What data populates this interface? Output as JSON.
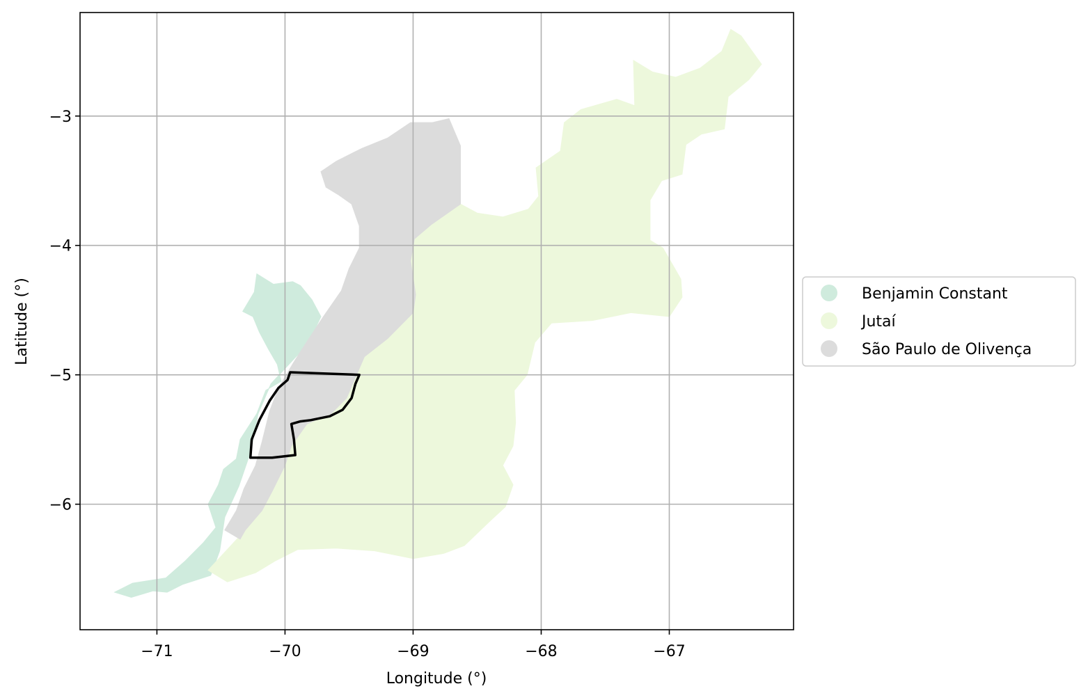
{
  "chart_data": {
    "type": "map",
    "xlabel": "Longitude (°)",
    "ylabel": "Latitude (°)",
    "xlim": [
      -71.6,
      -66.03
    ],
    "ylim": [
      -6.97,
      -2.2
    ],
    "x_ticks": [
      -71,
      -70,
      -69,
      -68,
      -67
    ],
    "x_tick_labels": [
      "−71",
      "−70",
      "−69",
      "−68",
      "−67"
    ],
    "y_ticks": [
      -3,
      -4,
      -5,
      -6
    ],
    "y_tick_labels": [
      "−3",
      "−4",
      "−5",
      "−6"
    ],
    "grid": true,
    "legend_position": "center-right-outside",
    "series": [
      {
        "name": "Benjamin Constant",
        "color": "#cfebdd",
        "polygon": [
          [
            -71.33,
            -6.68
          ],
          [
            -71.19,
            -6.61
          ],
          [
            -70.93,
            -6.57
          ],
          [
            -70.78,
            -6.44
          ],
          [
            -70.64,
            -6.3
          ],
          [
            -70.54,
            -6.18
          ],
          [
            -70.6,
            -6.0
          ],
          [
            -70.52,
            -5.85
          ],
          [
            -70.48,
            -5.73
          ],
          [
            -70.38,
            -5.65
          ],
          [
            -70.35,
            -5.5
          ],
          [
            -70.22,
            -5.3
          ],
          [
            -70.15,
            -5.12
          ],
          [
            -70.03,
            -5.05
          ],
          [
            -70.06,
            -4.92
          ],
          [
            -70.13,
            -4.8
          ],
          [
            -70.2,
            -4.67
          ],
          [
            -70.25,
            -4.55
          ],
          [
            -70.33,
            -4.51
          ],
          [
            -70.24,
            -4.36
          ],
          [
            -70.22,
            -4.22
          ],
          [
            -70.09,
            -4.3
          ],
          [
            -69.94,
            -4.28
          ],
          [
            -69.88,
            -4.31
          ],
          [
            -69.79,
            -4.42
          ],
          [
            -69.72,
            -4.55
          ],
          [
            -69.82,
            -4.76
          ],
          [
            -69.98,
            -4.93
          ],
          [
            -70.11,
            -5.07
          ],
          [
            -70.21,
            -5.3
          ],
          [
            -70.27,
            -5.6
          ],
          [
            -70.36,
            -5.86
          ],
          [
            -70.47,
            -6.1
          ],
          [
            -70.51,
            -6.36
          ],
          [
            -70.58,
            -6.55
          ],
          [
            -70.8,
            -6.62
          ],
          [
            -70.92,
            -6.68
          ],
          [
            -71.03,
            -6.67
          ],
          [
            -71.2,
            -6.72
          ],
          [
            -71.33,
            -6.68
          ]
        ]
      },
      {
        "name": "Jutaí",
        "color": "#edf8dc",
        "polygon": [
          [
            -70.6,
            -6.51
          ],
          [
            -70.45,
            -6.35
          ],
          [
            -70.31,
            -6.2
          ],
          [
            -70.18,
            -6.05
          ],
          [
            -70.1,
            -5.9
          ],
          [
            -70.0,
            -5.7
          ],
          [
            -69.95,
            -5.55
          ],
          [
            -69.83,
            -5.38
          ],
          [
            -69.64,
            -5.3
          ],
          [
            -69.52,
            -5.18
          ],
          [
            -69.45,
            -5.02
          ],
          [
            -69.38,
            -4.86
          ],
          [
            -69.2,
            -4.72
          ],
          [
            -69.0,
            -4.52
          ],
          [
            -68.98,
            -4.38
          ],
          [
            -69.02,
            -4.12
          ],
          [
            -68.99,
            -3.95
          ],
          [
            -68.88,
            -3.84
          ],
          [
            -68.65,
            -3.67
          ],
          [
            -68.5,
            -3.75
          ],
          [
            -68.3,
            -3.78
          ],
          [
            -68.1,
            -3.72
          ],
          [
            -68.02,
            -3.62
          ],
          [
            -68.04,
            -3.4
          ],
          [
            -67.85,
            -3.27
          ],
          [
            -67.82,
            -3.05
          ],
          [
            -67.69,
            -2.95
          ],
          [
            -67.41,
            -2.87
          ],
          [
            -67.27,
            -2.92
          ],
          [
            -67.28,
            -2.57
          ],
          [
            -67.13,
            -2.66
          ],
          [
            -66.95,
            -2.7
          ],
          [
            -66.76,
            -2.63
          ],
          [
            -66.59,
            -2.5
          ],
          [
            -66.52,
            -2.33
          ],
          [
            -66.44,
            -2.38
          ],
          [
            -66.28,
            -2.6
          ],
          [
            -66.38,
            -2.72
          ],
          [
            -66.54,
            -2.85
          ],
          [
            -66.57,
            -3.1
          ],
          [
            -66.75,
            -3.14
          ],
          [
            -66.87,
            -3.22
          ],
          [
            -66.9,
            -3.45
          ],
          [
            -67.06,
            -3.5
          ],
          [
            -67.15,
            -3.65
          ],
          [
            -67.15,
            -3.96
          ],
          [
            -67.05,
            -4.02
          ],
          [
            -66.91,
            -4.26
          ],
          [
            -66.9,
            -4.4
          ],
          [
            -67.0,
            -4.55
          ],
          [
            -67.3,
            -4.52
          ],
          [
            -67.6,
            -4.58
          ],
          [
            -67.92,
            -4.6
          ],
          [
            -68.05,
            -4.75
          ],
          [
            -68.11,
            -5.0
          ],
          [
            -68.21,
            -5.12
          ],
          [
            -68.2,
            -5.37
          ],
          [
            -68.22,
            -5.55
          ],
          [
            -68.3,
            -5.7
          ],
          [
            -68.22,
            -5.85
          ],
          [
            -68.28,
            -6.02
          ],
          [
            -68.4,
            -6.13
          ],
          [
            -68.6,
            -6.32
          ],
          [
            -68.76,
            -6.38
          ],
          [
            -69.0,
            -6.42
          ],
          [
            -69.3,
            -6.36
          ],
          [
            -69.6,
            -6.34
          ],
          [
            -69.9,
            -6.35
          ],
          [
            -70.08,
            -6.44
          ],
          [
            -70.23,
            -6.53
          ],
          [
            -70.45,
            -6.6
          ],
          [
            -70.6,
            -6.51
          ]
        ]
      },
      {
        "name": "São Paulo de Olivença",
        "color": "#dcdcdc",
        "polygon": [
          [
            -70.47,
            -6.2
          ],
          [
            -70.38,
            -6.05
          ],
          [
            -70.32,
            -5.88
          ],
          [
            -70.23,
            -5.7
          ],
          [
            -70.18,
            -5.52
          ],
          [
            -70.12,
            -5.28
          ],
          [
            -70.05,
            -5.1
          ],
          [
            -69.93,
            -4.9
          ],
          [
            -69.82,
            -4.73
          ],
          [
            -69.7,
            -4.55
          ],
          [
            -69.56,
            -4.35
          ],
          [
            -69.5,
            -4.18
          ],
          [
            -69.42,
            -4.02
          ],
          [
            -69.42,
            -3.85
          ],
          [
            -69.48,
            -3.68
          ],
          [
            -69.58,
            -3.61
          ],
          [
            -69.68,
            -3.55
          ],
          [
            -69.72,
            -3.43
          ],
          [
            -69.6,
            -3.35
          ],
          [
            -69.4,
            -3.25
          ],
          [
            -69.2,
            -3.17
          ],
          [
            -69.02,
            -3.05
          ],
          [
            -68.85,
            -3.05
          ],
          [
            -68.72,
            -3.02
          ],
          [
            -68.63,
            -3.23
          ],
          [
            -68.63,
            -3.68
          ],
          [
            -68.86,
            -3.84
          ],
          [
            -68.99,
            -3.95
          ],
          [
            -69.02,
            -4.12
          ],
          [
            -68.98,
            -4.38
          ],
          [
            -69.0,
            -4.52
          ],
          [
            -69.2,
            -4.72
          ],
          [
            -69.38,
            -4.86
          ],
          [
            -69.45,
            -5.02
          ],
          [
            -69.52,
            -5.18
          ],
          [
            -69.64,
            -5.3
          ],
          [
            -69.83,
            -5.38
          ],
          [
            -69.95,
            -5.55
          ],
          [
            -70.0,
            -5.7
          ],
          [
            -70.1,
            -5.9
          ],
          [
            -70.18,
            -6.05
          ],
          [
            -70.31,
            -6.2
          ],
          [
            -70.35,
            -6.27
          ],
          [
            -70.47,
            -6.2
          ]
        ]
      }
    ],
    "outline": {
      "color": "#000000",
      "polygon": [
        [
          -69.96,
          -4.98
        ],
        [
          -69.42,
          -5.0
        ],
        [
          -69.45,
          -5.07
        ],
        [
          -69.48,
          -5.18
        ],
        [
          -69.55,
          -5.27
        ],
        [
          -69.65,
          -5.32
        ],
        [
          -69.8,
          -5.35
        ],
        [
          -69.88,
          -5.36
        ],
        [
          -69.95,
          -5.38
        ],
        [
          -69.93,
          -5.5
        ],
        [
          -69.92,
          -5.62
        ],
        [
          -70.1,
          -5.64
        ],
        [
          -70.27,
          -5.64
        ],
        [
          -70.26,
          -5.5
        ],
        [
          -70.2,
          -5.35
        ],
        [
          -70.12,
          -5.2
        ],
        [
          -70.05,
          -5.1
        ],
        [
          -69.98,
          -5.04
        ],
        [
          -69.96,
          -4.98
        ]
      ]
    }
  },
  "legend": {
    "items": [
      {
        "label": "Benjamin Constant",
        "color": "#cfebdd"
      },
      {
        "label": "Jutaí",
        "color": "#edf8dc"
      },
      {
        "label": "São Paulo de Olivença",
        "color": "#dcdcdc"
      }
    ]
  }
}
